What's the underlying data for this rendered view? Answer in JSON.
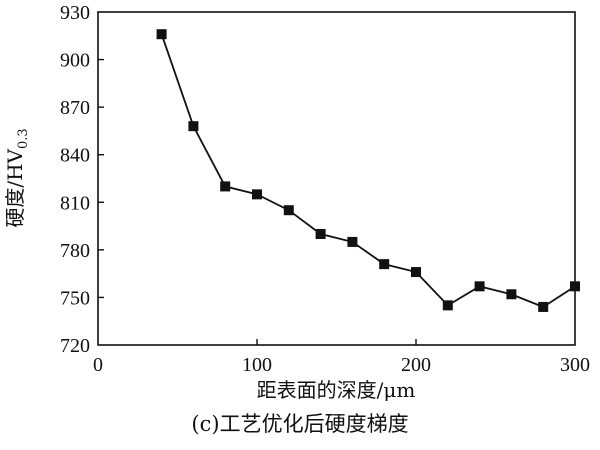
{
  "chart_data": {
    "type": "line",
    "xlabel": "距表面的深度/μm",
    "ylabel": "硬度/HV",
    "ylabel_subscript": "0.3",
    "caption": "(c)工艺优化后硬度梯度",
    "xlim": [
      0,
      300
    ],
    "ylim": [
      720,
      930
    ],
    "xticks": [
      0,
      100,
      200,
      300
    ],
    "yticks": [
      720,
      750,
      780,
      810,
      840,
      870,
      900,
      930
    ],
    "grid": false,
    "marker": "square",
    "line_color": "#111111",
    "series": [
      {
        "x": [
          40,
          60,
          80,
          100,
          120,
          140,
          160,
          180,
          200,
          220,
          240,
          260,
          280,
          300
        ],
        "y": [
          916,
          858,
          820,
          815,
          805,
          790,
          785,
          771,
          766,
          745,
          757,
          752,
          744,
          757
        ]
      }
    ]
  }
}
